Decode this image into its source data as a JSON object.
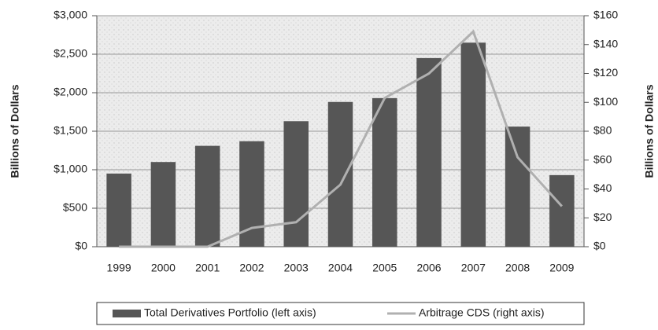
{
  "chart_data": {
    "type": "bar-line",
    "categories": [
      "1999",
      "2000",
      "2001",
      "2002",
      "2003",
      "2004",
      "2005",
      "2006",
      "2007",
      "2008",
      "2009"
    ],
    "ylabel": "Billions of Dollars",
    "y2label": "Billions of Dollars",
    "series": [
      {
        "name": "Total Derivatives Portfolio (left axis)",
        "type": "bar",
        "color": "#565656",
        "values": [
          950,
          1100,
          1310,
          1370,
          1630,
          1880,
          1930,
          2450,
          2650,
          1560,
          930
        ]
      },
      {
        "name": "Arbitrage CDS (right axis)",
        "type": "line",
        "axis": "y2",
        "color": "#b0b0b0",
        "values": [
          0,
          0,
          0,
          13,
          17,
          43,
          103,
          120,
          149,
          62,
          28
        ]
      }
    ],
    "ylim": [
      0,
      3000
    ],
    "yticks": [
      {
        "value": 0,
        "label": "$0"
      },
      {
        "value": 500,
        "label": "$500"
      },
      {
        "value": 1000,
        "label": "$1,000"
      },
      {
        "value": 1500,
        "label": "$1,500"
      },
      {
        "value": 2000,
        "label": "$2,000"
      },
      {
        "value": 2500,
        "label": "$2,500"
      },
      {
        "value": 3000,
        "label": "$3,000"
      }
    ],
    "y2lim": [
      0,
      160
    ],
    "y2ticks": [
      {
        "value": 0,
        "label": "$0"
      },
      {
        "value": 20,
        "label": "$20"
      },
      {
        "value": 40,
        "label": "$40"
      },
      {
        "value": 60,
        "label": "$60"
      },
      {
        "value": 80,
        "label": "$80"
      },
      {
        "value": 100,
        "label": "$100"
      },
      {
        "value": 120,
        "label": "$120"
      },
      {
        "value": 140,
        "label": "$140"
      },
      {
        "value": 160,
        "label": "$160"
      }
    ],
    "grid": true
  }
}
